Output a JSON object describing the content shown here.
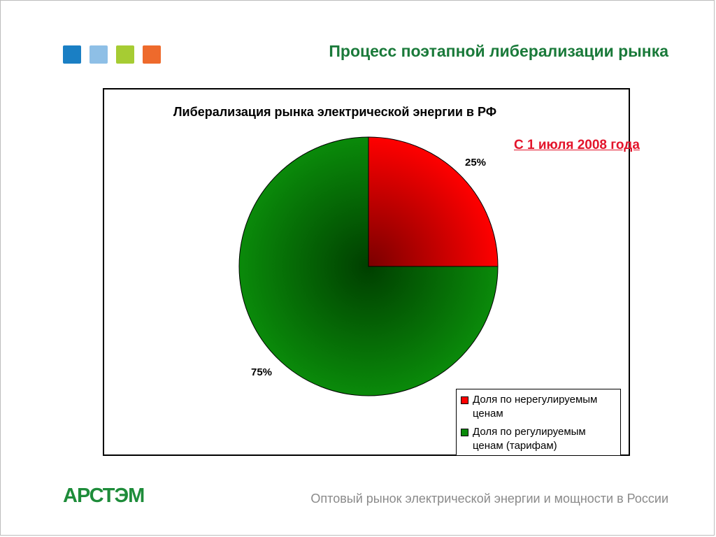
{
  "slide": {
    "title": "Процесс поэтапной либерализации рынка",
    "date_note": "С 1 июля 2008 года",
    "footer_text": "Оптовый рынок электрической энергии и мощности в России",
    "logo_text": "АРСТЭМ",
    "square_colors": [
      "#1a7fc4",
      "#8ebfe6",
      "#a6cc33",
      "#ee6a2c"
    ]
  },
  "chart_data": {
    "type": "pie",
    "title": "Либерализация рынка электрической энергии в РФ",
    "legend_position": "bottom-right",
    "slices": [
      {
        "name": "Доля по нерегулируемым ценам",
        "value": 25,
        "label": "25%",
        "color": "#ff0000",
        "shade": "#7a0000"
      },
      {
        "name": "Доля по регулируемым ценам (тарифам)",
        "value": 75,
        "label": "75%",
        "color": "#0a8a0a",
        "shade": "#003f00"
      }
    ]
  }
}
